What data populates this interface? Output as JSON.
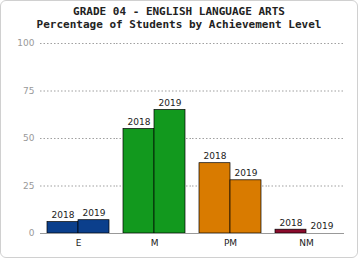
{
  "chart_data": {
    "type": "bar",
    "title": "GRADE 04 - ENGLISH LANGUAGE ARTS",
    "subtitle": "Percentage of Students by Achievement Level",
    "categories": [
      "E",
      "M",
      "PM",
      "NM"
    ],
    "series": [
      {
        "name": "2018",
        "values": [
          6,
          55,
          37,
          2
        ]
      },
      {
        "name": "2019",
        "values": [
          7,
          65,
          28,
          0
        ]
      }
    ],
    "colors": [
      "#0b3f8c",
      "#12991e",
      "#d97b00",
      "#8a0b2c"
    ],
    "ylim": [
      0,
      100
    ],
    "yticks": [
      0,
      25,
      50,
      75,
      100
    ],
    "grid": true
  }
}
